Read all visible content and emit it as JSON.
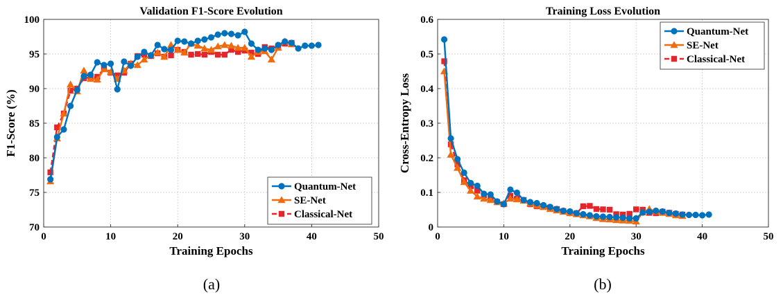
{
  "colors": {
    "Quantum-Net": "#0072BD",
    "SE-Net": "#F06A0E",
    "Classical-Net": "#E5252A"
  },
  "panels": [
    {
      "label": "(a)"
    },
    {
      "label": "(b)"
    }
  ],
  "chart_data": [
    {
      "type": "line",
      "title": "Validation F1-Score Evolution",
      "xlabel": "Training Epochs",
      "ylabel": "F1-Score (%)",
      "xlim": [
        0,
        50
      ],
      "ylim": [
        70,
        100
      ],
      "xticks": [
        0,
        10,
        20,
        30,
        40,
        50
      ],
      "yticks": [
        70,
        75,
        80,
        85,
        90,
        95,
        100
      ],
      "grid": true,
      "legend_position": "bottom-right",
      "series": [
        {
          "name": "Quantum-Net",
          "marker": "circle",
          "x": [
            1,
            2,
            3,
            4,
            5,
            6,
            7,
            8,
            9,
            10,
            11,
            12,
            13,
            14,
            15,
            16,
            17,
            18,
            19,
            20,
            21,
            22,
            23,
            24,
            25,
            26,
            27,
            28,
            29,
            30,
            31,
            32,
            33,
            34,
            35,
            36,
            37,
            38,
            39,
            40,
            41
          ],
          "y": [
            76.9,
            83.0,
            84.1,
            87.5,
            89.8,
            91.8,
            92.0,
            93.8,
            93.4,
            93.6,
            89.9,
            93.9,
            93.3,
            94.6,
            95.3,
            94.8,
            96.3,
            95.7,
            95.6,
            96.9,
            96.8,
            96.5,
            96.9,
            97.1,
            97.4,
            97.8,
            98.0,
            97.9,
            97.7,
            98.2,
            96.5,
            95.6,
            95.8,
            95.6,
            96.3,
            96.8,
            96.6,
            95.8,
            96.2,
            96.2,
            96.3
          ]
        },
        {
          "name": "SE-Net",
          "marker": "triangle",
          "x": [
            1,
            2,
            3,
            4,
            5,
            6,
            7,
            8,
            9,
            10,
            11,
            12,
            13,
            14,
            15,
            16,
            17,
            18,
            19,
            20,
            21,
            22,
            23,
            24,
            25,
            26,
            27,
            28,
            29,
            30,
            31,
            32,
            33,
            34,
            35,
            36,
            37
          ],
          "y": [
            76.6,
            82.8,
            86.4,
            90.6,
            89.6,
            92.6,
            91.4,
            91.3,
            92.8,
            92.4,
            91.4,
            92.6,
            93.6,
            93.4,
            94.2,
            94.8,
            95.2,
            94.6,
            96.3,
            95.6,
            95.2,
            96.5,
            96.2,
            95.8,
            95.6,
            96.1,
            96.3,
            96.2,
            95.9,
            95.9,
            94.6,
            95.3,
            95.4,
            94.2,
            95.9,
            96.8,
            96.4
          ]
        },
        {
          "name": "Classical-Net",
          "marker": "square",
          "x": [
            1,
            2,
            3,
            4,
            5,
            6,
            7,
            8,
            9,
            10,
            11,
            12,
            13,
            14,
            15,
            16,
            17,
            18,
            19,
            20,
            21,
            22,
            23,
            24,
            25,
            26,
            27,
            28,
            29,
            30,
            31,
            32,
            33,
            34,
            35,
            36,
            37
          ],
          "y": [
            77.9,
            84.4,
            86.4,
            89.7,
            90.0,
            91.5,
            91.6,
            91.7,
            92.9,
            92.3,
            91.9,
            92.3,
            93.6,
            94.7,
            94.9,
            94.7,
            95.1,
            94.6,
            94.8,
            95.6,
            95.3,
            94.9,
            95.0,
            94.9,
            95.3,
            94.9,
            94.9,
            95.6,
            95.3,
            95.5,
            95.2,
            95.0,
            96.0,
            95.8,
            96.1,
            96.5,
            96.6
          ]
        }
      ]
    },
    {
      "type": "line",
      "title": "Training Loss Evolution",
      "xlabel": "Training Epochs",
      "ylabel": "Cross-Entropy Loss",
      "xlim": [
        0,
        50
      ],
      "ylim": [
        0,
        0.6
      ],
      "xticks": [
        0,
        10,
        20,
        30,
        40,
        50
      ],
      "yticks": [
        0,
        0.1,
        0.2,
        0.3,
        0.4,
        0.5,
        0.6
      ],
      "ytick_labels": [
        "0",
        "0.1",
        "0.2",
        "0.3",
        "0.4",
        "0.5",
        "0.6"
      ],
      "grid": true,
      "legend_position": "top-right",
      "series": [
        {
          "name": "Quantum-Net",
          "marker": "circle",
          "x": [
            1,
            2,
            3,
            4,
            5,
            6,
            7,
            8,
            9,
            10,
            11,
            12,
            13,
            14,
            15,
            16,
            17,
            18,
            19,
            20,
            21,
            22,
            23,
            24,
            25,
            26,
            27,
            28,
            29,
            30,
            31,
            32,
            33,
            34,
            35,
            36,
            37,
            38,
            39,
            40,
            41
          ],
          "y": [
            0.542,
            0.256,
            0.196,
            0.157,
            0.127,
            0.119,
            0.096,
            0.094,
            0.074,
            0.066,
            0.108,
            0.099,
            0.078,
            0.072,
            0.069,
            0.063,
            0.058,
            0.052,
            0.047,
            0.045,
            0.04,
            0.037,
            0.034,
            0.031,
            0.03,
            0.029,
            0.028,
            0.027,
            0.025,
            0.025,
            0.042,
            0.044,
            0.047,
            0.045,
            0.041,
            0.039,
            0.036,
            0.035,
            0.035,
            0.034,
            0.036
          ]
        },
        {
          "name": "SE-Net",
          "marker": "triangle",
          "x": [
            1,
            2,
            3,
            4,
            5,
            6,
            7,
            8,
            9,
            10,
            11,
            12,
            13,
            14,
            15,
            16,
            17,
            18,
            19,
            20,
            21,
            22,
            23,
            24,
            25,
            26,
            27,
            28,
            29,
            30,
            31,
            32,
            33,
            34,
            35,
            36,
            37
          ],
          "y": [
            0.45,
            0.209,
            0.171,
            0.13,
            0.105,
            0.088,
            0.082,
            0.078,
            0.072,
            0.068,
            0.082,
            0.08,
            0.076,
            0.068,
            0.062,
            0.058,
            0.052,
            0.048,
            0.044,
            0.04,
            0.037,
            0.034,
            0.031,
            0.026,
            0.023,
            0.022,
            0.02,
            0.019,
            0.018,
            0.016,
            0.042,
            0.052,
            0.045,
            0.041,
            0.038,
            0.034,
            0.032
          ]
        },
        {
          "name": "Classical-Net",
          "marker": "square",
          "x": [
            1,
            2,
            3,
            4,
            5,
            6,
            7,
            8,
            9,
            10,
            11,
            12,
            13,
            14,
            15,
            16,
            17,
            18,
            19,
            20,
            21,
            22,
            23,
            24,
            25,
            26,
            27,
            28,
            29,
            30,
            31,
            32,
            33,
            34,
            35,
            36,
            37
          ],
          "y": [
            0.479,
            0.239,
            0.181,
            0.135,
            0.118,
            0.105,
            0.092,
            0.082,
            0.072,
            0.066,
            0.09,
            0.082,
            0.078,
            0.066,
            0.06,
            0.058,
            0.056,
            0.052,
            0.046,
            0.042,
            0.04,
            0.06,
            0.061,
            0.052,
            0.051,
            0.05,
            0.037,
            0.036,
            0.038,
            0.051,
            0.05,
            0.041,
            0.04,
            0.044,
            0.041,
            0.038,
            0.036
          ]
        }
      ]
    }
  ]
}
